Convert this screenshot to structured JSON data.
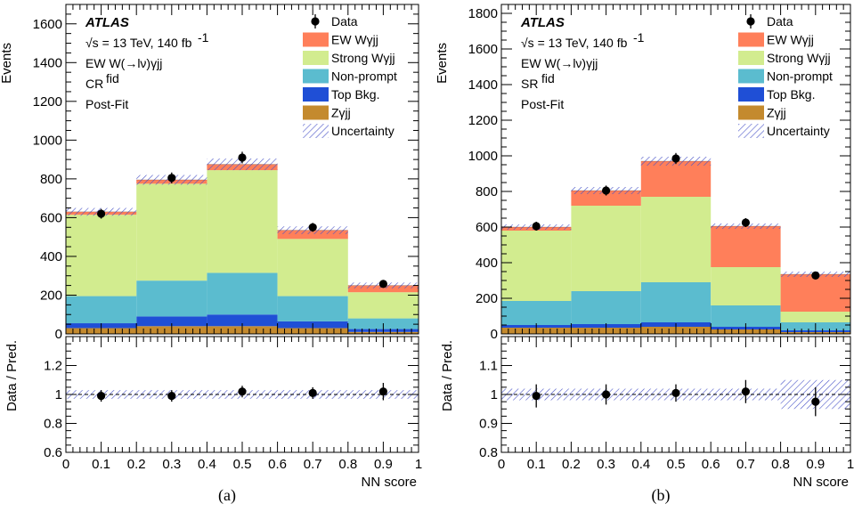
{
  "chart_data": [
    {
      "type": "bar",
      "stacked": true,
      "panel_label": "(a)",
      "atlas_label": "ATLAS",
      "energy_text": "√s = 13 TeV, 140 fb",
      "lumi_exp": "-1",
      "process_text": "EW W(→lν)γjj",
      "region_text": "CR",
      "region_sup": "fid",
      "fit_text": "Post-Fit",
      "ylabel": "Events",
      "xlabel": "NN score",
      "ratio_ylabel": "Data / Pred.",
      "ylim": [
        0,
        1700
      ],
      "yticks": [
        0,
        200,
        400,
        600,
        800,
        1000,
        1200,
        1400,
        1600
      ],
      "ratio_ylim": [
        0.6,
        1.4
      ],
      "ratio_yticks": [
        0.6,
        0.8,
        1,
        1.2
      ],
      "xticks": [
        0,
        0.1,
        0.2,
        0.3,
        0.4,
        0.5,
        0.6,
        0.7,
        0.8,
        0.9,
        1
      ],
      "bin_edges": [
        0,
        0.2,
        0.4,
        0.6,
        0.8,
        1.0
      ],
      "series": [
        {
          "name": "Zγjj",
          "color": "#c48a2e",
          "values": [
            30,
            40,
            40,
            30,
            10
          ]
        },
        {
          "name": "Top Bkg.",
          "color": "#1f4fd6",
          "values": [
            25,
            50,
            60,
            35,
            15
          ]
        },
        {
          "name": "Non-prompt",
          "color": "#5bbccf",
          "values": [
            140,
            185,
            215,
            130,
            55
          ]
        },
        {
          "name": "Strong Wγjj",
          "color": "#d2ec8f",
          "values": [
            420,
            500,
            530,
            295,
            135
          ]
        },
        {
          "name": "EW Wγjj",
          "color": "#ff7f5a",
          "values": [
            15,
            20,
            30,
            45,
            35
          ]
        }
      ],
      "uncertainty_halfwidth": [
        20,
        25,
        30,
        20,
        15
      ],
      "data": {
        "name": "Data",
        "x": [
          0.1,
          0.3,
          0.5,
          0.7,
          0.9
        ],
        "y": [
          620,
          805,
          910,
          550,
          258
        ],
        "err": [
          25,
          28,
          30,
          23,
          16
        ]
      },
      "ratio": {
        "y": [
          0.99,
          0.99,
          1.02,
          1.01,
          1.02
        ],
        "err": [
          0.04,
          0.04,
          0.04,
          0.04,
          0.06
        ],
        "band": 0.03
      },
      "legend": [
        "Data",
        "EW Wγjj",
        "Strong Wγjj",
        "Non-prompt",
        "Top Bkg.",
        "Zγjj",
        "Uncertainty"
      ]
    },
    {
      "type": "bar",
      "stacked": true,
      "panel_label": "(b)",
      "atlas_label": "ATLAS",
      "energy_text": "√s = 13 TeV, 140 fb",
      "lumi_exp": "-1",
      "process_text": "EW W(→lν)γjj",
      "region_text": "SR",
      "region_sup": "fid",
      "fit_text": "Post-Fit",
      "ylabel": "Events",
      "xlabel": "NN score",
      "ratio_ylabel": "Data / Pred.",
      "ylim": [
        0,
        1850
      ],
      "yticks": [
        0,
        200,
        400,
        600,
        800,
        1000,
        1200,
        1400,
        1600,
        1800
      ],
      "ratio_ylim": [
        0.8,
        1.2
      ],
      "ratio_yticks": [
        0.8,
        0.9,
        1,
        1.1
      ],
      "xticks": [
        0,
        0.1,
        0.2,
        0.3,
        0.4,
        0.5,
        0.6,
        0.7,
        0.8,
        0.9,
        1
      ],
      "bin_edges": [
        0,
        0.2,
        0.4,
        0.6,
        0.8,
        1.0
      ],
      "series": [
        {
          "name": "Zγjj",
          "color": "#c48a2e",
          "values": [
            35,
            35,
            40,
            25,
            10
          ]
        },
        {
          "name": "Top Bkg.",
          "color": "#1f4fd6",
          "values": [
            15,
            20,
            25,
            15,
            10
          ]
        },
        {
          "name": "Non-prompt",
          "color": "#5bbccf",
          "values": [
            135,
            185,
            225,
            120,
            45
          ]
        },
        {
          "name": "Strong Wγjj",
          "color": "#d2ec8f",
          "values": [
            395,
            480,
            480,
            215,
            60
          ]
        },
        {
          "name": "EW Wγjj",
          "color": "#ff7f5a",
          "values": [
            20,
            85,
            200,
            230,
            210
          ]
        }
      ],
      "uncertainty_halfwidth": [
        15,
        20,
        25,
        15,
        15
      ],
      "data": {
        "name": "Data",
        "x": [
          0.1,
          0.3,
          0.5,
          0.7,
          0.9
        ],
        "y": [
          605,
          805,
          985,
          625,
          328
        ],
        "err": [
          25,
          28,
          31,
          25,
          18
        ]
      },
      "ratio": {
        "y": [
          0.995,
          1.0,
          1.005,
          1.01,
          0.975
        ],
        "err": [
          0.04,
          0.035,
          0.03,
          0.04,
          0.05
        ],
        "band": 0.02,
        "band_last": 0.05
      },
      "legend": [
        "Data",
        "EW Wγjj",
        "Strong Wγjj",
        "Non-prompt",
        "Top Bkg.",
        "Zγjj",
        "Uncertainty"
      ]
    }
  ]
}
